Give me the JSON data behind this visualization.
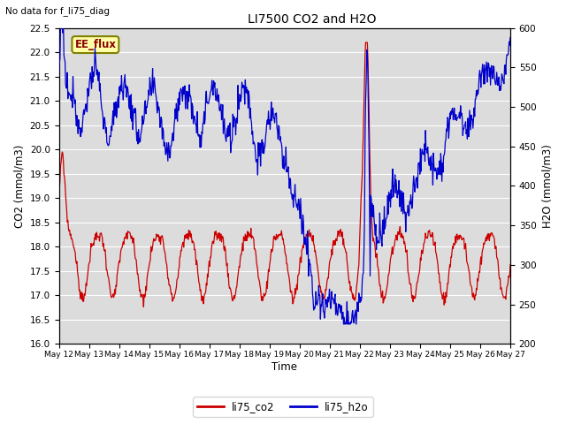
{
  "title": "LI7500 CO2 and H2O",
  "top_left_text": "No data for f_li75_diag",
  "box_label": "EE_flux",
  "xlabel": "Time",
  "ylabel_left": "CO2 (mmol/m3)",
  "ylabel_right": "H2O (mmol/m3)",
  "ylim_left": [
    16.0,
    22.5
  ],
  "ylim_right": [
    200,
    600
  ],
  "yticks_left": [
    16.0,
    16.5,
    17.0,
    17.5,
    18.0,
    18.5,
    19.0,
    19.5,
    20.0,
    20.5,
    21.0,
    21.5,
    22.0,
    22.5
  ],
  "yticks_right": [
    200,
    250,
    300,
    350,
    400,
    450,
    500,
    550,
    600
  ],
  "xtick_labels": [
    "May 12",
    "May 13",
    "May 14",
    "May 15",
    "May 16",
    "May 17",
    "May 18",
    "May 19",
    "May 20",
    "May 21",
    "May 22",
    "May 23",
    "May 24",
    "May 25",
    "May 26",
    "May 27"
  ],
  "co2_color": "#CC0000",
  "h2o_color": "#0000CC",
  "background_color": "#DCDCDC",
  "legend_co2": "li75_co2",
  "legend_h2o": "li75_h2o",
  "num_points": 800
}
